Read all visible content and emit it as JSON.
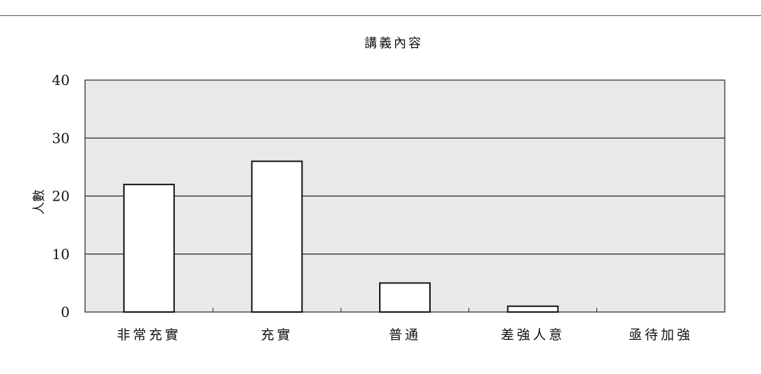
{
  "chart_data": {
    "type": "bar",
    "title": "講義內容",
    "ylabel": "人數",
    "xlabel": "",
    "categories": [
      "非常充實",
      "充實",
      "普通",
      "差強人意",
      "亟待加強"
    ],
    "values": [
      22,
      26,
      5,
      1,
      0
    ],
    "ylim": [
      0,
      40
    ],
    "yticks": [
      0,
      10,
      20,
      30,
      40
    ],
    "grid": true,
    "legend": "none",
    "colors": {
      "bar_fill": "#ffffff",
      "bar_stroke": "#111111",
      "plot_bg": "#e9e9e9",
      "grid": "#222222"
    }
  }
}
